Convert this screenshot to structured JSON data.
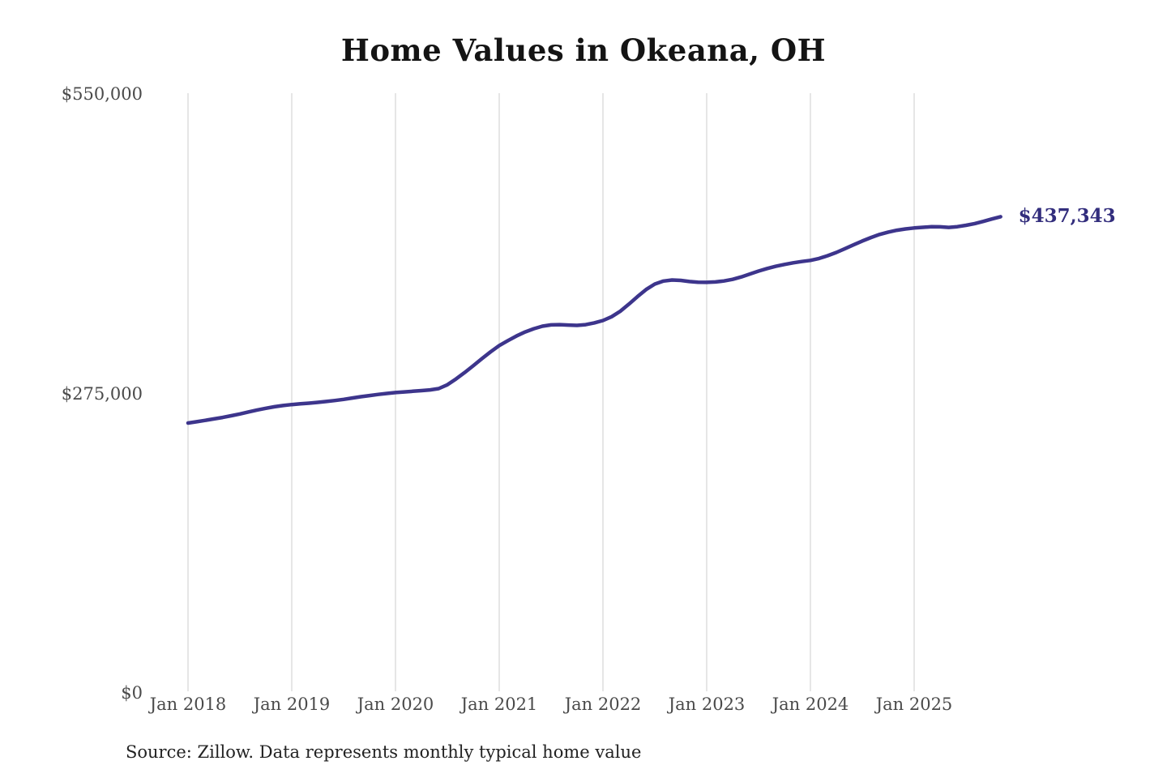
{
  "chart": {
    "title": "Home Values in Okeana, OH",
    "end_label": "$437,343",
    "source": "Source: Zillow. Data represents monthly typical home value"
  },
  "chart_data": {
    "type": "line",
    "title": "Home Values in Okeana, OH",
    "series_name": "Monthly typical home value",
    "start_month": "Jan 2018",
    "end_month": "Nov 2025",
    "frequency": "monthly",
    "values": [
      247800,
      249000,
      250300,
      251600,
      253000,
      254500,
      256200,
      258000,
      259800,
      261400,
      262800,
      263900,
      264800,
      265500,
      266100,
      266800,
      267600,
      268500,
      269600,
      270800,
      272000,
      273100,
      274100,
      275000,
      275800,
      276400,
      277000,
      277600,
      278300,
      279500,
      283000,
      288300,
      294200,
      300500,
      307000,
      313200,
      319000,
      323500,
      327800,
      331500,
      334500,
      336800,
      338000,
      338200,
      337800,
      337500,
      338200,
      339800,
      342000,
      345500,
      350500,
      357000,
      364000,
      370500,
      375500,
      378200,
      379200,
      378800,
      377800,
      377200,
      377000,
      377400,
      378300,
      379800,
      382000,
      384700,
      387400,
      389800,
      391800,
      393500,
      395000,
      396200,
      397200,
      399000,
      401500,
      404500,
      408000,
      411500,
      415000,
      418200,
      421000,
      423200,
      424900,
      426100,
      427000,
      427600,
      428100,
      428000,
      427500,
      428200,
      429400,
      431000,
      433000,
      435200,
      437343
    ],
    "x_tick_labels": [
      "Jan 2018",
      "Jan 2019",
      "Jan 2020",
      "Jan 2021",
      "Jan 2022",
      "Jan 2023",
      "Jan 2024",
      "Jan 2025"
    ],
    "y_ticks": [
      {
        "value": 0,
        "label": "$0"
      },
      {
        "value": 275000,
        "label": "$275,000"
      },
      {
        "value": 550000,
        "label": "$550,000"
      }
    ],
    "ylim": [
      0,
      550000
    ],
    "grid": "vertical-only",
    "legend": "none",
    "line_color": "#3d358c",
    "annotation_color": "#332e7d",
    "end_label": "$437,343",
    "source": "Source: Zillow. Data represents monthly typical home value"
  }
}
